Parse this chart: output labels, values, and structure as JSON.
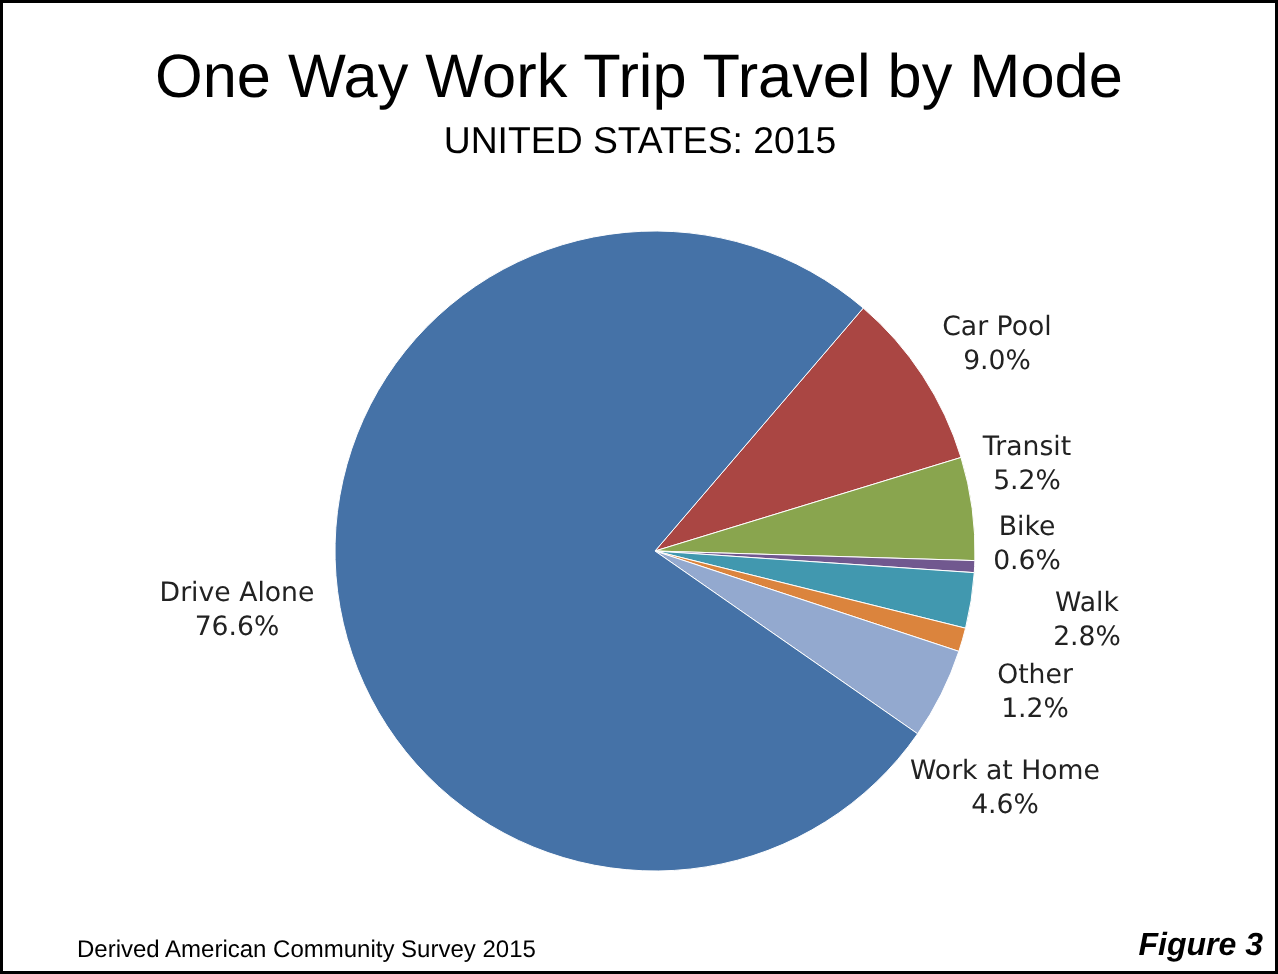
{
  "chart_data": {
    "type": "pie",
    "title": "One Way Work Trip Travel by Mode",
    "subtitle": "UNITED STATES: 2015",
    "categories": [
      "Car Pool",
      "Transit",
      "Bike",
      "Walk",
      "Other",
      "Work at Home",
      "Drive Alone"
    ],
    "values": [
      9.0,
      5.2,
      0.6,
      2.8,
      1.2,
      4.6,
      76.6
    ],
    "value_labels": [
      "9.0%",
      "5.2%",
      "0.6%",
      "2.8%",
      "1.2%",
      "4.6%",
      "76.6%"
    ],
    "colors": [
      "#aa4643",
      "#89a54e",
      "#71588f",
      "#4198af",
      "#db843d",
      "#93a9cf",
      "#4572a7"
    ],
    "annotations": [
      "Derived American Community Survey 2015",
      "Figure 3"
    ]
  }
}
